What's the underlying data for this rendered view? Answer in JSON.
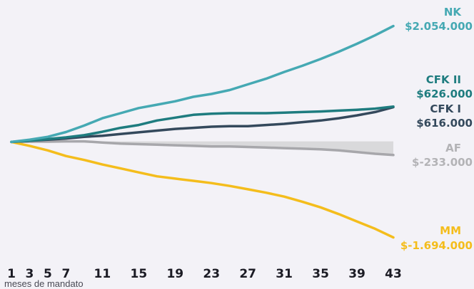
{
  "chart_data": {
    "type": "line",
    "title": "",
    "xlabel": "meses de mandato",
    "ylabel": "",
    "x_ticks": [
      1,
      3,
      5,
      7,
      11,
      15,
      19,
      23,
      27,
      31,
      35,
      39,
      43
    ],
    "xlim": [
      1,
      43
    ],
    "ylim": [
      -1800000,
      2150000
    ],
    "grid": false,
    "legend": "none (labels at line ends)",
    "x": [
      1,
      3,
      5,
      7,
      9,
      11,
      13,
      15,
      17,
      19,
      21,
      23,
      25,
      27,
      29,
      31,
      33,
      35,
      37,
      39,
      41,
      43
    ],
    "series": [
      {
        "name": "NK",
        "value_label": "$2.054.000",
        "color": "#45a9b3",
        "values": [
          0,
          40000,
          90000,
          175000,
          290000,
          420000,
          510000,
          600000,
          660000,
          720000,
          800000,
          850000,
          920000,
          1020000,
          1120000,
          1240000,
          1350000,
          1470000,
          1600000,
          1740000,
          1890000,
          2054000
        ]
      },
      {
        "name": "CFK II",
        "value_label": "$626.000",
        "color": "#1e7c7f",
        "values": [
          0,
          20000,
          50000,
          80000,
          120000,
          180000,
          250000,
          300000,
          380000,
          430000,
          480000,
          500000,
          510000,
          510000,
          510000,
          520000,
          530000,
          540000,
          555000,
          570000,
          590000,
          626000
        ]
      },
      {
        "name": "CFK I",
        "value_label": "$616.000",
        "color": "#34495c",
        "values": [
          0,
          20000,
          40000,
          60000,
          90000,
          110000,
          140000,
          170000,
          200000,
          230000,
          250000,
          270000,
          280000,
          280000,
          300000,
          320000,
          350000,
          380000,
          420000,
          470000,
          530000,
          616000
        ]
      },
      {
        "name": "AF",
        "value_label": "$-233.000",
        "color": "#a7a7ab",
        "values": [
          0,
          5000,
          5000,
          10000,
          10000,
          -10000,
          -30000,
          -40000,
          -50000,
          -60000,
          -70000,
          -80000,
          -80000,
          -90000,
          -100000,
          -110000,
          -120000,
          -130000,
          -150000,
          -180000,
          -210000,
          -233000
        ]
      },
      {
        "name": "MM",
        "value_label": "$-1.694.000",
        "color": "#f4bd1c",
        "values": [
          0,
          -70000,
          -150000,
          -250000,
          -320000,
          -400000,
          -470000,
          -540000,
          -610000,
          -650000,
          -690000,
          -730000,
          -780000,
          -840000,
          -900000,
          -970000,
          -1060000,
          -1160000,
          -1280000,
          -1410000,
          -1540000,
          -1694000
        ]
      }
    ]
  }
}
